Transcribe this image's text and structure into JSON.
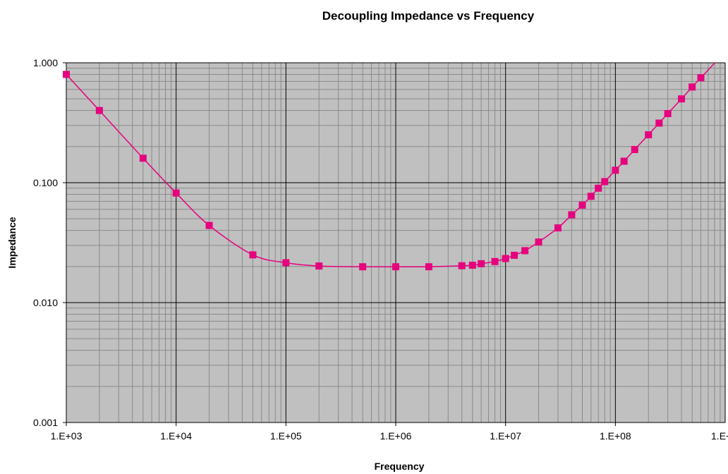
{
  "chart_data": {
    "type": "line",
    "title": "Decoupling Impedance vs Frequency",
    "xlabel": "Frequency",
    "ylabel": "Impedance",
    "x_scale": "log",
    "y_scale": "log",
    "xlim": [
      1000,
      1000000000
    ],
    "ylim": [
      0.001,
      1.0
    ],
    "x_tick_labels": [
      "1.E+03",
      "1.E+04",
      "1.E+05",
      "1.E+06",
      "1.E+07",
      "1.E+08",
      "1.E+"
    ],
    "y_tick_labels": [
      "1.000",
      "0.100",
      "0.010",
      "0.001"
    ],
    "grid": true,
    "legend": "none",
    "colors": {
      "series": "#e6007e",
      "plot_bg": "#c0c0c0",
      "grid": "#888888",
      "major_grid": "#000000"
    },
    "series": [
      {
        "x": [
          1000,
          2000,
          5000,
          10000,
          20000,
          50000,
          100000,
          200000,
          500000,
          1000000,
          2000000,
          4000000,
          5000000,
          6000000,
          8000000,
          10000000,
          12000000,
          15000000,
          20000000,
          30000000,
          40000000,
          50000000,
          60000000,
          70000000,
          80000000,
          100000000,
          120000000,
          150000000,
          200000000,
          250000000,
          300000000,
          400000000,
          500000000,
          600000000
        ],
        "y": [
          0.8,
          0.4,
          0.16,
          0.082,
          0.044,
          0.025,
          0.0215,
          0.0202,
          0.0199,
          0.0199,
          0.0199,
          0.0203,
          0.0205,
          0.0211,
          0.022,
          0.0233,
          0.0248,
          0.0271,
          0.032,
          0.042,
          0.054,
          0.065,
          0.077,
          0.09,
          0.102,
          0.127,
          0.151,
          0.189,
          0.251,
          0.314,
          0.377,
          0.5,
          0.628,
          0.75
        ]
      }
    ]
  }
}
